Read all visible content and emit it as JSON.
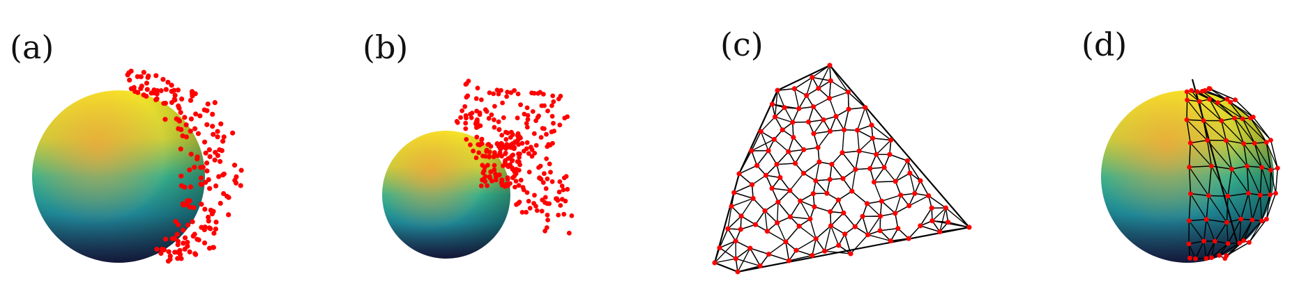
{
  "panels": [
    {
      "id": "a",
      "label": "(a)"
    },
    {
      "id": "b",
      "label": "(b)"
    },
    {
      "id": "c",
      "label": "(c)"
    },
    {
      "id": "d",
      "label": "(d)"
    }
  ],
  "colors": {
    "points": "#ff0000",
    "mesh_edges": "#000000",
    "sphere_top": "#f4ea26",
    "sphere_mid": "#2aa89a",
    "sphere_bottom": "#1a1f4e",
    "highlight": "#f6a33a"
  }
}
